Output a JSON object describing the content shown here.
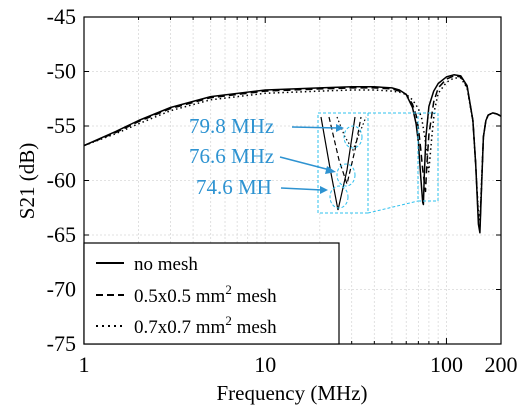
{
  "chart_data": {
    "type": "line",
    "xlabel": "Frequency (MHz)",
    "ylabel": "S21 (dB)",
    "xscale": "log",
    "xlim": [
      1,
      200
    ],
    "ylim": [
      -75,
      -45
    ],
    "xticks": [
      1,
      10,
      100,
      200
    ],
    "xtick_labels": [
      "1",
      "10",
      "100",
      "200"
    ],
    "yticks": [
      -75,
      -70,
      -65,
      -60,
      -55,
      -50,
      -45
    ],
    "ytick_labels": [
      "-75",
      "-70",
      "-65",
      "-60",
      "-55",
      "-50",
      "-45"
    ],
    "grid": true,
    "legend_position": "bottom-left",
    "colors": {
      "lines": "#000000",
      "annotation": "#2e93d1",
      "grid": "#d9d9d9"
    },
    "series": [
      {
        "name": "no mesh",
        "style": "solid",
        "x": [
          1,
          1.5,
          2,
          3,
          5,
          10,
          20,
          30,
          40,
          50,
          55,
          60,
          65,
          68,
          70,
          72,
          74,
          74.6,
          75.5,
          77,
          80,
          85,
          90,
          100,
          110,
          120,
          130,
          140,
          145,
          150,
          153,
          156,
          160,
          165,
          170,
          180,
          190,
          200
        ],
        "y": [
          -56.8,
          -55.5,
          -54.5,
          -53.3,
          -52.3,
          -51.7,
          -51.5,
          -51.4,
          -51.4,
          -51.5,
          -51.7,
          -52.1,
          -53.3,
          -54.8,
          -56.5,
          -59.5,
          -62.0,
          -62.2,
          -59.5,
          -56.0,
          -53.2,
          -51.8,
          -51.1,
          -50.5,
          -50.3,
          -50.4,
          -51.3,
          -54.5,
          -58.5,
          -64.0,
          -64.8,
          -61.0,
          -56.0,
          -54.5,
          -54.0,
          -53.8,
          -53.9,
          -54.1
        ]
      },
      {
        "name": "0.5x0.5 mm² mesh",
        "style": "dashed",
        "x": [
          1,
          1.5,
          2,
          3,
          5,
          10,
          20,
          30,
          40,
          50,
          55,
          60,
          65,
          68,
          70,
          72,
          74,
          76.6,
          78,
          80,
          85,
          90,
          100,
          110,
          120,
          130,
          140,
          145,
          150,
          153,
          156,
          160,
          165,
          170,
          180,
          190,
          200
        ],
        "y": [
          -56.8,
          -55.6,
          -54.6,
          -53.4,
          -52.4,
          -51.8,
          -51.6,
          -51.5,
          -51.5,
          -51.6,
          -51.8,
          -52.1,
          -53.0,
          -54.0,
          -55.2,
          -57.0,
          -59.0,
          -61.0,
          -58.5,
          -55.8,
          -52.8,
          -51.5,
          -50.7,
          -50.4,
          -50.5,
          -51.4,
          -54.5,
          -58.5,
          -63.5,
          -64.2,
          -60.8,
          -56.0,
          -54.5,
          -54.0,
          -53.8,
          -53.9,
          -54.1
        ]
      },
      {
        "name": "0.7x0.7 mm² mesh",
        "style": "dotted",
        "x": [
          1,
          1.5,
          2,
          3,
          5,
          10,
          20,
          30,
          40,
          50,
          55,
          60,
          65,
          70,
          73,
          76,
          78,
          79.8,
          81,
          83,
          86,
          90,
          100,
          110,
          120,
          130,
          140,
          145,
          150,
          153,
          156,
          160,
          165,
          170,
          180,
          190,
          200
        ],
        "y": [
          -56.8,
          -55.7,
          -54.8,
          -53.6,
          -52.6,
          -52.0,
          -51.8,
          -51.7,
          -51.7,
          -51.8,
          -51.9,
          -52.1,
          -52.6,
          -53.4,
          -54.3,
          -56.0,
          -57.5,
          -59.2,
          -58.0,
          -56.0,
          -53.5,
          -52.0,
          -51.0,
          -50.6,
          -50.6,
          -51.5,
          -54.6,
          -58.6,
          -63.0,
          -63.6,
          -60.5,
          -56.0,
          -54.5,
          -54.0,
          -53.8,
          -53.9,
          -54.1
        ]
      }
    ],
    "annotations": [
      {
        "text": "79.8 MHz"
      },
      {
        "text": "76.6 MHz"
      },
      {
        "text": "74.6 MH"
      }
    ],
    "legend": {
      "entries": [
        {
          "label": "no mesh",
          "style": "solid"
        },
        {
          "label_main": "0.5x0.5 mm",
          "label_sup": "2",
          "label_tail": " mesh",
          "style": "dashed"
        },
        {
          "label_main": "0.7x0.7 mm",
          "label_sup": "2",
          "label_tail": " mesh",
          "style": "dotted"
        }
      ]
    }
  }
}
